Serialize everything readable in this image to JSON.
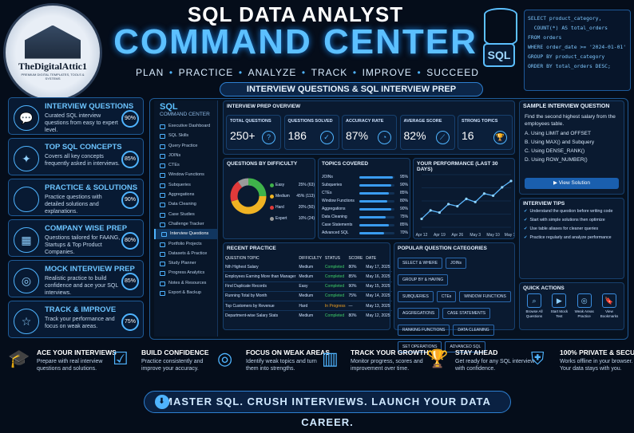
{
  "logo": {
    "name": "TheDigitalAttic1",
    "sub": "PREMIUM DIGITAL TEMPLATES, TOOLS & SYSTEMS"
  },
  "header": {
    "title_line1": "SQL DATA ANALYST",
    "title_line2": "COMMAND CENTER",
    "tagline": [
      "PLAN",
      "PRACTICE",
      "ANALYZE",
      "TRACK",
      "IMPROVE",
      "SUCCEED"
    ],
    "banner": "INTERVIEW QUESTIONS & SQL INTERVIEW PREP",
    "sql_badge": "SQL",
    "code": "SELECT product_category,\n  COUNT(*) AS total_orders\nFROM orders\nWHERE order_date >= '2024-01-01'\nGROUP BY product_category\nORDER BY total_orders DESC;"
  },
  "features": [
    {
      "title": "INTERVIEW QUESTIONS",
      "desc": "Curated SQL interview questions from easy to expert level.",
      "pct": "90%",
      "icon": "chat-icon"
    },
    {
      "title": "TOP SQL CONCEPTS",
      "desc": "Covers all key concepts frequently asked in interviews.",
      "pct": "85%",
      "icon": "bulb-icon"
    },
    {
      "title": "PRACTICE & SOLUTIONS",
      "desc": "Practice questions with detailed solutions and explanations.",
      "pct": "90%",
      "icon": "code-icon"
    },
    {
      "title": "COMPANY WISE PREP",
      "desc": "Questions tailored for FAANG, Startups & Top Product Companies.",
      "pct": "80%",
      "icon": "building-icon"
    },
    {
      "title": "MOCK INTERVIEW PREP",
      "desc": "Realistic practice to build confidence and ace your SQL interviews.",
      "pct": "85%",
      "icon": "target-icon"
    },
    {
      "title": "TRACK & IMPROVE",
      "desc": "Track your performance and focus on weak areas.",
      "pct": "75%",
      "icon": "star-icon"
    }
  ],
  "sidebar": {
    "title": "SQL",
    "subtitle": "COMMAND CENTER",
    "items": [
      "Executive Dashboard",
      "SQL Skills",
      "Query Practice",
      "JOINs",
      "CTEs",
      "Window Functions",
      "Subqueries",
      "Aggregations",
      "Data Cleaning",
      "Case Studies",
      "Challenge Tracker",
      "Interview Questions",
      "Portfolio Projects",
      "Datasets & Practice",
      "Study Planner",
      "Progress Analytics",
      "Notes & Resources",
      "Export & Backup"
    ],
    "active": "Interview Questions"
  },
  "overview": {
    "title": "INTERVIEW PREP OVERVIEW",
    "cards": [
      {
        "label": "TOTAL QUESTIONS",
        "value": "250+",
        "icon": "question-icon"
      },
      {
        "label": "QUESTIONS SOLVED",
        "value": "186",
        "icon": "check-icon"
      },
      {
        "label": "ACCURACY RATE",
        "value": "87%",
        "icon": "gauge-icon"
      },
      {
        "label": "AVERAGE SCORE",
        "value": "82%",
        "icon": "trend-icon"
      },
      {
        "label": "STRONG TOPICS",
        "value": "16",
        "icon": "trophy-icon"
      }
    ]
  },
  "difficulty": {
    "title": "QUESTIONS BY DIFFICULTY",
    "items": [
      {
        "label": "Easy",
        "value": "25% (63)",
        "pct": 25,
        "color": "#3fb24a"
      },
      {
        "label": "Medium",
        "value": "45% (113)",
        "pct": 45,
        "color": "#f0b323"
      },
      {
        "label": "Hard",
        "value": "20% (50)",
        "pct": 20,
        "color": "#e03a3a"
      },
      {
        "label": "Expert",
        "value": "10% (24)",
        "pct": 10,
        "color": "#9a9a9a"
      }
    ]
  },
  "topics": {
    "title": "TOPICS COVERED",
    "items": [
      {
        "label": "JOINs",
        "pct": 95,
        "text": "95%"
      },
      {
        "label": "Subqueries",
        "pct": 90,
        "text": "90%"
      },
      {
        "label": "CTEs",
        "pct": 85,
        "text": "85%"
      },
      {
        "label": "Window Functions",
        "pct": 80,
        "text": "80%"
      },
      {
        "label": "Aggregations",
        "pct": 90,
        "text": "90%"
      },
      {
        "label": "Data Cleaning",
        "pct": 75,
        "text": "75%"
      },
      {
        "label": "Case Statements",
        "pct": 85,
        "text": "85%"
      },
      {
        "label": "Advanced SQL",
        "pct": 70,
        "text": "70%"
      }
    ]
  },
  "chart_data": {
    "type": "line",
    "title": "YOUR PERFORMANCE (LAST 30 DAYS)",
    "categories": [
      "Apr 12",
      "Apr 19",
      "Apr 26",
      "May 3",
      "May 10",
      "May 17"
    ],
    "x": [
      "Apr 12",
      "Apr 15",
      "Apr 19",
      "Apr 22",
      "Apr 26",
      "Apr 29",
      "May 3",
      "May 7",
      "May 10",
      "May 14",
      "May 17"
    ],
    "values": [
      48,
      56,
      54,
      62,
      60,
      67,
      64,
      72,
      70,
      78,
      84
    ],
    "ylim": [
      40,
      90
    ],
    "grid": true
  },
  "recent": {
    "title": "RECENT PRACTICE",
    "headers": [
      "QUESTION TOPIC",
      "DIFFICULTY",
      "STATUS",
      "SCORE",
      "DATE"
    ],
    "rows": [
      [
        "Nth Highest Salary",
        "Medium",
        "Completed",
        "80%",
        "May 17, 2025"
      ],
      [
        "Employees Earning More than Manager",
        "Medium",
        "Completed",
        "85%",
        "May 16, 2025"
      ],
      [
        "Find Duplicate Records",
        "Easy",
        "Completed",
        "90%",
        "May 15, 2025"
      ],
      [
        "Running Total by Month",
        "Medium",
        "Completed",
        "75%",
        "May 14, 2025"
      ],
      [
        "Top Customers by Revenue",
        "Hard",
        "In Progress",
        "—",
        "May 13, 2025"
      ],
      [
        "Department-wise Salary Stats",
        "Medium",
        "Completed",
        "80%",
        "May 12, 2025"
      ]
    ]
  },
  "categories": {
    "title": "POPULAR QUESTION CATEGORIES",
    "rows": [
      [
        "SELECT & WHERE",
        "JOINs",
        "GROUP BY & HAVING"
      ],
      [
        "SUBQUERIES",
        "CTEs",
        "WINDOW FUNCTIONS"
      ],
      [
        "AGGREGATIONS",
        "CASE STATEMENTS"
      ],
      [
        "RANKING FUNCTIONS",
        "DATA CLEANING"
      ],
      [
        "SET OPERATIONS",
        "ADVANCED SQL"
      ]
    ]
  },
  "sample": {
    "title": "SAMPLE INTERVIEW QUESTION",
    "question": "Find the second highest salary from the employees table.",
    "options": [
      "A.  Using LIMIT and OFFSET",
      "B.  Using MAX() and Subquery",
      "C.  Using DENSE_RANK()",
      "D.  Using ROW_NUMBER()"
    ],
    "button": "View Solution"
  },
  "tips": {
    "title": "INTERVIEW TIPS",
    "items": [
      "Understand the question before writing code",
      "Start with simple solutions then optimize",
      "Use table aliases for cleaner queries",
      "Practice regularly and analyze performance"
    ]
  },
  "quick": {
    "title": "QUICK ACTIONS",
    "items": [
      {
        "label": "Browse All Questions",
        "icon": "search-icon"
      },
      {
        "label": "Start Mock Test",
        "icon": "play-icon"
      },
      {
        "label": "Weak Areas Practice",
        "icon": "target-icon"
      },
      {
        "label": "View Bookmarks",
        "icon": "bookmark-icon"
      }
    ]
  },
  "bottom": [
    {
      "title": "ACE YOUR INTERVIEWS",
      "desc": "Prepare with real interview questions and solutions.",
      "icon": "graduation-cap-icon"
    },
    {
      "title": "BUILD CONFIDENCE",
      "desc": "Practice consistently and improve your accuracy.",
      "icon": "clipboard-check-icon"
    },
    {
      "title": "FOCUS ON WEAK AREAS",
      "desc": "Identify weak topics and turn them into strengths.",
      "icon": "target-icon"
    },
    {
      "title": "TRACK YOUR GROWTH",
      "desc": "Monitor progress, scores and improvement over time.",
      "icon": "bar-chart-icon"
    },
    {
      "title": "STAY AHEAD",
      "desc": "Get ready for any SQL interview with confidence.",
      "icon": "trophy-icon"
    },
    {
      "title": "100% PRIVATE & SECURE",
      "desc": "Works offline in your browser. Your data stays with you.",
      "icon": "shield-icon"
    }
  ],
  "footer": "MASTER SQL. CRUSH INTERVIEWS. LAUNCH YOUR DATA CAREER."
}
